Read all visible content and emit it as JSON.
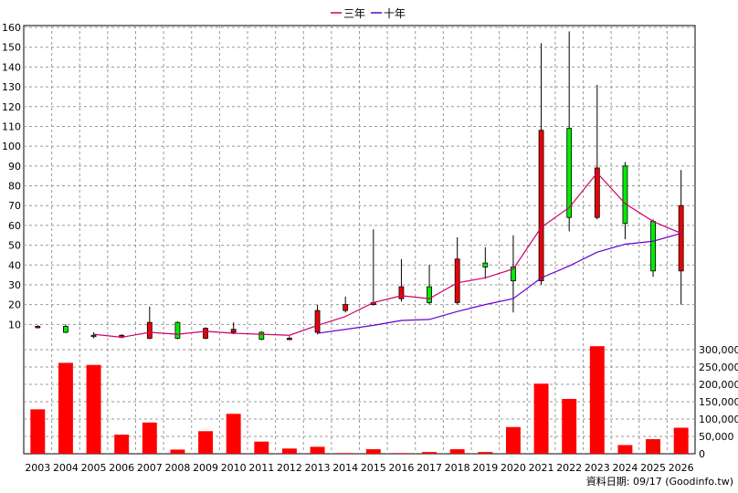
{
  "chart_data": {
    "type": "candlestick-bar",
    "legend": [
      {
        "name": "三年",
        "color": "#cc0066"
      },
      {
        "name": "十年",
        "color": "#6600cc"
      }
    ],
    "categories": [
      "2003",
      "2004",
      "2005",
      "2006",
      "2007",
      "2008",
      "2009",
      "2010",
      "2011",
      "2012",
      "2013",
      "2014",
      "2015",
      "2016",
      "2017",
      "2018",
      "2019",
      "2020",
      "2021",
      "2022",
      "2023",
      "2024",
      "2025",
      "2026"
    ],
    "price_axis": {
      "min": 0,
      "max": 160,
      "ticks": [
        10,
        20,
        30,
        40,
        50,
        60,
        70,
        80,
        90,
        100,
        110,
        120,
        130,
        140,
        150,
        160
      ]
    },
    "volume_axis": {
      "min": 0,
      "max": 300000,
      "ticks": [
        "0",
        "50,000",
        "100,000",
        "150,000",
        "200,000",
        "250,000",
        "300,000"
      ],
      "tick_values": [
        0,
        50000,
        100000,
        150000,
        200000,
        250000,
        300000
      ]
    },
    "candles": [
      {
        "open": 8.5,
        "close": 9.0,
        "high": 9.5,
        "low": 8.0
      },
      {
        "open": 9.0,
        "close": 6.0,
        "high": 10.0,
        "low": 5.5
      },
      {
        "open": 4.5,
        "close": 4.0,
        "high": 6.0,
        "low": 3.0
      },
      {
        "open": 3.5,
        "close": 4.5,
        "high": 5.0,
        "low": 3.0
      },
      {
        "open": 3.0,
        "close": 11.0,
        "high": 19.0,
        "low": 2.5
      },
      {
        "open": 11.0,
        "close": 3.0,
        "high": 11.5,
        "low": 2.5
      },
      {
        "open": 3.0,
        "close": 8.0,
        "high": 8.5,
        "low": 2.5
      },
      {
        "open": 6.0,
        "close": 7.5,
        "high": 11.0,
        "low": 5.0
      },
      {
        "open": 6.0,
        "close": 2.5,
        "high": 6.5,
        "low": 2.0
      },
      {
        "open": 2.5,
        "close": 3.0,
        "high": 4.0,
        "low": 2.0
      },
      {
        "open": 6.0,
        "close": 17.0,
        "high": 20.0,
        "low": 5.0
      },
      {
        "open": 17.0,
        "close": 20.0,
        "high": 24.0,
        "low": 16.0
      },
      {
        "open": 20.0,
        "close": 21.0,
        "high": 58.0,
        "low": 19.5
      },
      {
        "open": 23.0,
        "close": 29.0,
        "high": 43.0,
        "low": 21.5
      },
      {
        "open": 29.0,
        "close": 21.0,
        "high": 40.0,
        "low": 20.0
      },
      {
        "open": 21.0,
        "close": 43.0,
        "high": 54.0,
        "low": 20.0
      },
      {
        "open": 41.0,
        "close": 39.0,
        "high": 49.0,
        "low": 33.0
      },
      {
        "open": 39.0,
        "close": 32.0,
        "high": 55.0,
        "low": 16.0
      },
      {
        "open": 32.0,
        "close": 108.0,
        "high": 152.0,
        "low": 30.0
      },
      {
        "open": 109.0,
        "close": 64.0,
        "high": 158.0,
        "low": 57.0
      },
      {
        "open": 64.0,
        "close": 89.0,
        "high": 131.0,
        "low": 63.0
      },
      {
        "open": 90.0,
        "close": 61.0,
        "high": 92.0,
        "low": 53.0
      },
      {
        "open": 62.0,
        "close": 37.0,
        "high": 63.0,
        "low": 34.0
      },
      {
        "open": 37.0,
        "close": 70.0,
        "high": 88.0,
        "low": 20.0
      }
    ],
    "series": [
      {
        "name": "三年",
        "values": [
          null,
          null,
          5.0,
          3.5,
          6.0,
          5.0,
          6.5,
          5.5,
          5.0,
          4.5,
          9.5,
          14.0,
          21.0,
          24.5,
          23.0,
          31.0,
          33.5,
          38.0,
          59.0,
          69.0,
          86.5,
          71.0,
          62.0,
          56.0
        ]
      },
      {
        "name": "十年",
        "values": [
          null,
          null,
          null,
          null,
          null,
          null,
          null,
          null,
          null,
          null,
          5.5,
          7.5,
          9.5,
          12.0,
          12.5,
          16.5,
          20.0,
          23.0,
          33.5,
          39.5,
          46.5,
          50.5,
          52.0,
          56.0
        ]
      }
    ],
    "volumes": [
      128000,
      262000,
      256000,
      55000,
      90000,
      12000,
      65000,
      115000,
      35000,
      15000,
      20000,
      2000,
      13000,
      2000,
      5000,
      13000,
      5000,
      77000,
      202000,
      158000,
      310000,
      25000,
      42000,
      75000
    ],
    "source_text": "資料日期: 09/17  (Goodinfo.tw)"
  }
}
